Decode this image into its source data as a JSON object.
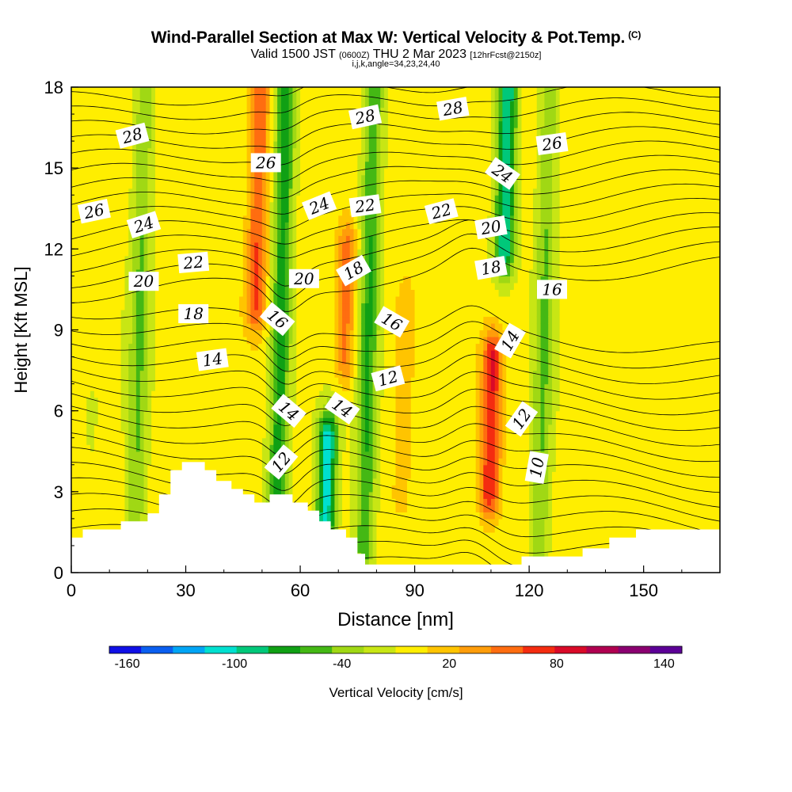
{
  "header": {
    "title": "Wind-Parallel Section at Max W: Vertical Velocity & Pot.Temp.",
    "copyright": "(C)",
    "valid_prefix": "Valid 1500 JST",
    "valid_utc": "(0600Z)",
    "valid_date": "THU 2 Mar 2023",
    "forecast_info": "[12hrFcst@2150z]",
    "grid_info": "i,j,k,angle=34,23,24,40"
  },
  "colors": {
    "palette": [
      "#1010e6",
      "#0a5ff0",
      "#00a5f5",
      "#00e0d0",
      "#00c87a",
      "#10a014",
      "#44b814",
      "#a0d814",
      "#c8e614",
      "#ffee00",
      "#ffc400",
      "#ff9d0a",
      "#ff6d10",
      "#f42c10",
      "#d90a28",
      "#b00050",
      "#8a0070",
      "#5c0096"
    ]
  },
  "chart_data": {
    "type": "heatmap",
    "xlabel": "Distance [nm]",
    "ylabel": "Height [Kft MSL]",
    "xlim": [
      0,
      170
    ],
    "ylim": [
      0,
      18
    ],
    "x_ticks": [
      "0",
      "30",
      "60",
      "90",
      "120",
      "150"
    ],
    "y_ticks": [
      "0",
      "3",
      "6",
      "9",
      "12",
      "15",
      "18"
    ],
    "colorbar": {
      "label": "Vertical Velocity [cm/s]",
      "tick_labels": [
        "-160",
        "-100",
        "-40",
        "20",
        "80",
        "140"
      ],
      "tick_values": [
        -160,
        -100,
        -40,
        20,
        80,
        140
      ],
      "range": [
        -170,
        150
      ],
      "bin_width": 20
    },
    "vertical_velocity_features": [
      {
        "x": 5,
        "z_min": 1.5,
        "z_max": 6,
        "w": 10,
        "description": "weak updraft"
      },
      {
        "x": 18,
        "z_min": 2,
        "z_max": 18,
        "w": -30
      },
      {
        "x": 33,
        "z_min": 2,
        "z_max": 18,
        "w": 20
      },
      {
        "x": 49,
        "z_min": 10,
        "z_max": 18,
        "w": 90
      },
      {
        "x": 55,
        "z_min": 1,
        "z_max": 18,
        "w": -60
      },
      {
        "x": 67,
        "z_min": 2,
        "z_max": 5,
        "w": -100
      },
      {
        "x": 72,
        "z_min": 8,
        "z_max": 12,
        "w": 80
      },
      {
        "x": 78,
        "z_min": 1,
        "z_max": 18,
        "w": -50
      },
      {
        "x": 87,
        "z_min": 3,
        "z_max": 10,
        "w": 40
      },
      {
        "x": 110,
        "z_min": 3,
        "z_max": 8,
        "w": 110
      },
      {
        "x": 114,
        "z_min": 12,
        "z_max": 18,
        "w": -90
      },
      {
        "x": 124,
        "z_min": 1,
        "z_max": 18,
        "w": -30
      }
    ],
    "theta_contours": {
      "units_suffix": "",
      "labels": [
        {
          "value": 28,
          "text": "28",
          "x": 16,
          "z": 16.2
        },
        {
          "value": 28,
          "text": "28",
          "x": 77,
          "z": 16.9
        },
        {
          "value": 28,
          "text": "28",
          "x": 100,
          "z": 17.2
        },
        {
          "value": 26,
          "text": "26",
          "x": 6,
          "z": 13.4
        },
        {
          "value": 26,
          "text": "26",
          "x": 51,
          "z": 15.2
        },
        {
          "value": 26,
          "text": "26",
          "x": 126,
          "z": 15.9
        },
        {
          "value": 24,
          "text": "24",
          "x": 19,
          "z": 12.9
        },
        {
          "value": 24,
          "text": "24",
          "x": 65,
          "z": 13.6
        },
        {
          "value": 24,
          "text": "24",
          "x": 113,
          "z": 14.8
        },
        {
          "value": 22,
          "text": "22",
          "x": 32,
          "z": 11.5
        },
        {
          "value": 22,
          "text": "22",
          "x": 77,
          "z": 13.6
        },
        {
          "value": 22,
          "text": "22",
          "x": 97,
          "z": 13.4
        },
        {
          "value": 20,
          "text": "20",
          "x": 19,
          "z": 10.8
        },
        {
          "value": 20,
          "text": "20",
          "x": 61,
          "z": 10.9
        },
        {
          "value": 20,
          "text": "20",
          "x": 110,
          "z": 12.8
        },
        {
          "value": 18,
          "text": "18",
          "x": 32,
          "z": 9.6
        },
        {
          "value": 18,
          "text": "18",
          "x": 74,
          "z": 11.2
        },
        {
          "value": 18,
          "text": "18",
          "x": 110,
          "z": 11.3
        },
        {
          "value": 16,
          "text": "16",
          "x": 54,
          "z": 9.4
        },
        {
          "value": 16,
          "text": "16",
          "x": 84,
          "z": 9.3
        },
        {
          "value": 16,
          "text": "16",
          "x": 126,
          "z": 10.5
        },
        {
          "value": 14,
          "text": "14",
          "x": 37,
          "z": 7.9
        },
        {
          "value": 14,
          "text": "14",
          "x": 57,
          "z": 6.0
        },
        {
          "value": 14,
          "text": "14",
          "x": 71,
          "z": 6.1
        },
        {
          "value": 14,
          "text": "14",
          "x": 115,
          "z": 8.6
        },
        {
          "value": 12,
          "text": "12",
          "x": 55,
          "z": 4.1
        },
        {
          "value": 12,
          "text": "12",
          "x": 83,
          "z": 7.2
        },
        {
          "value": 12,
          "text": "12",
          "x": 118,
          "z": 5.7
        },
        {
          "value": 10,
          "text": "10",
          "x": 122,
          "z": 3.9
        }
      ]
    },
    "terrain_profile": [
      [
        0,
        1.3
      ],
      [
        3,
        1.3
      ],
      [
        3,
        1.6
      ],
      [
        13,
        1.6
      ],
      [
        13,
        1.9
      ],
      [
        20,
        1.9
      ],
      [
        20,
        2.2
      ],
      [
        23,
        2.2
      ],
      [
        23,
        2.9
      ],
      [
        26,
        2.9
      ],
      [
        26,
        3.8
      ],
      [
        29,
        3.8
      ],
      [
        29,
        4.1
      ],
      [
        35,
        4.1
      ],
      [
        35,
        3.8
      ],
      [
        38,
        3.8
      ],
      [
        38,
        3.4
      ],
      [
        42,
        3.4
      ],
      [
        42,
        3.1
      ],
      [
        45,
        3.1
      ],
      [
        45,
        2.9
      ],
      [
        48,
        2.9
      ],
      [
        48,
        2.6
      ],
      [
        52,
        2.6
      ],
      [
        52,
        2.9
      ],
      [
        58,
        2.9
      ],
      [
        58,
        2.6
      ],
      [
        62,
        2.6
      ],
      [
        62,
        2.3
      ],
      [
        65,
        2.3
      ],
      [
        65,
        1.9
      ],
      [
        68,
        1.9
      ],
      [
        68,
        1.6
      ],
      [
        72,
        1.6
      ],
      [
        72,
        1.3
      ],
      [
        75,
        1.3
      ],
      [
        75,
        0.7
      ],
      [
        77,
        0.7
      ],
      [
        77,
        0.3
      ],
      [
        85,
        0.3
      ],
      [
        85,
        0.3
      ],
      [
        118,
        0.3
      ],
      [
        118,
        0.6
      ],
      [
        134,
        0.6
      ],
      [
        134,
        0.9
      ],
      [
        141,
        0.9
      ],
      [
        141,
        1.3
      ],
      [
        148,
        1.3
      ],
      [
        148,
        1.6
      ],
      [
        170,
        1.6
      ]
    ]
  }
}
